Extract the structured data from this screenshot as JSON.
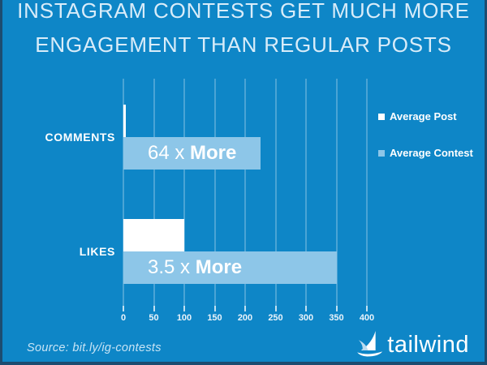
{
  "title": {
    "line1": "INSTAGRAM CONTESTS GET MUCH MORE",
    "line2": "ENGAGEMENT THAN REGULAR POSTS"
  },
  "colors": {
    "background": "#0e86c7",
    "frame_border": "#1c4c70",
    "average_post": "#ffffff",
    "average_contest": "#8dc6e8",
    "title_text": "#d8ecf9",
    "gridline": "rgba(255,255,255,0.25)"
  },
  "chart_data": {
    "type": "bar",
    "orientation": "horizontal",
    "title": "INSTAGRAM CONTESTS GET MUCH MORE ENGAGEMENT THAN REGULAR POSTS",
    "categories": [
      "COMMENTS",
      "LIKES"
    ],
    "series": [
      {
        "name": "Average Post",
        "color": "#ffffff",
        "values": [
          3.5,
          100
        ]
      },
      {
        "name": "Average Contest",
        "color": "#8dc6e8",
        "values": [
          225,
          350
        ]
      }
    ],
    "annotations": [
      {
        "category": "COMMENTS",
        "prefix": "64 x ",
        "emphasis": "More"
      },
      {
        "category": "LIKES",
        "prefix": "3.5 x ",
        "emphasis": "More"
      }
    ],
    "x_ticks": [
      0,
      50,
      100,
      150,
      200,
      250,
      300,
      350,
      400
    ],
    "xlim": [
      0,
      400
    ],
    "grid": true,
    "legend": {
      "position": "right",
      "items": [
        {
          "label": "Average Post",
          "color": "#ffffff"
        },
        {
          "label": "Average Contest",
          "color": "#8dc6e8"
        }
      ]
    }
  },
  "footer": {
    "source": "Source: bit.ly/ig-contests",
    "brand": "tailwind",
    "brand_icon": "sailboat-icon"
  }
}
